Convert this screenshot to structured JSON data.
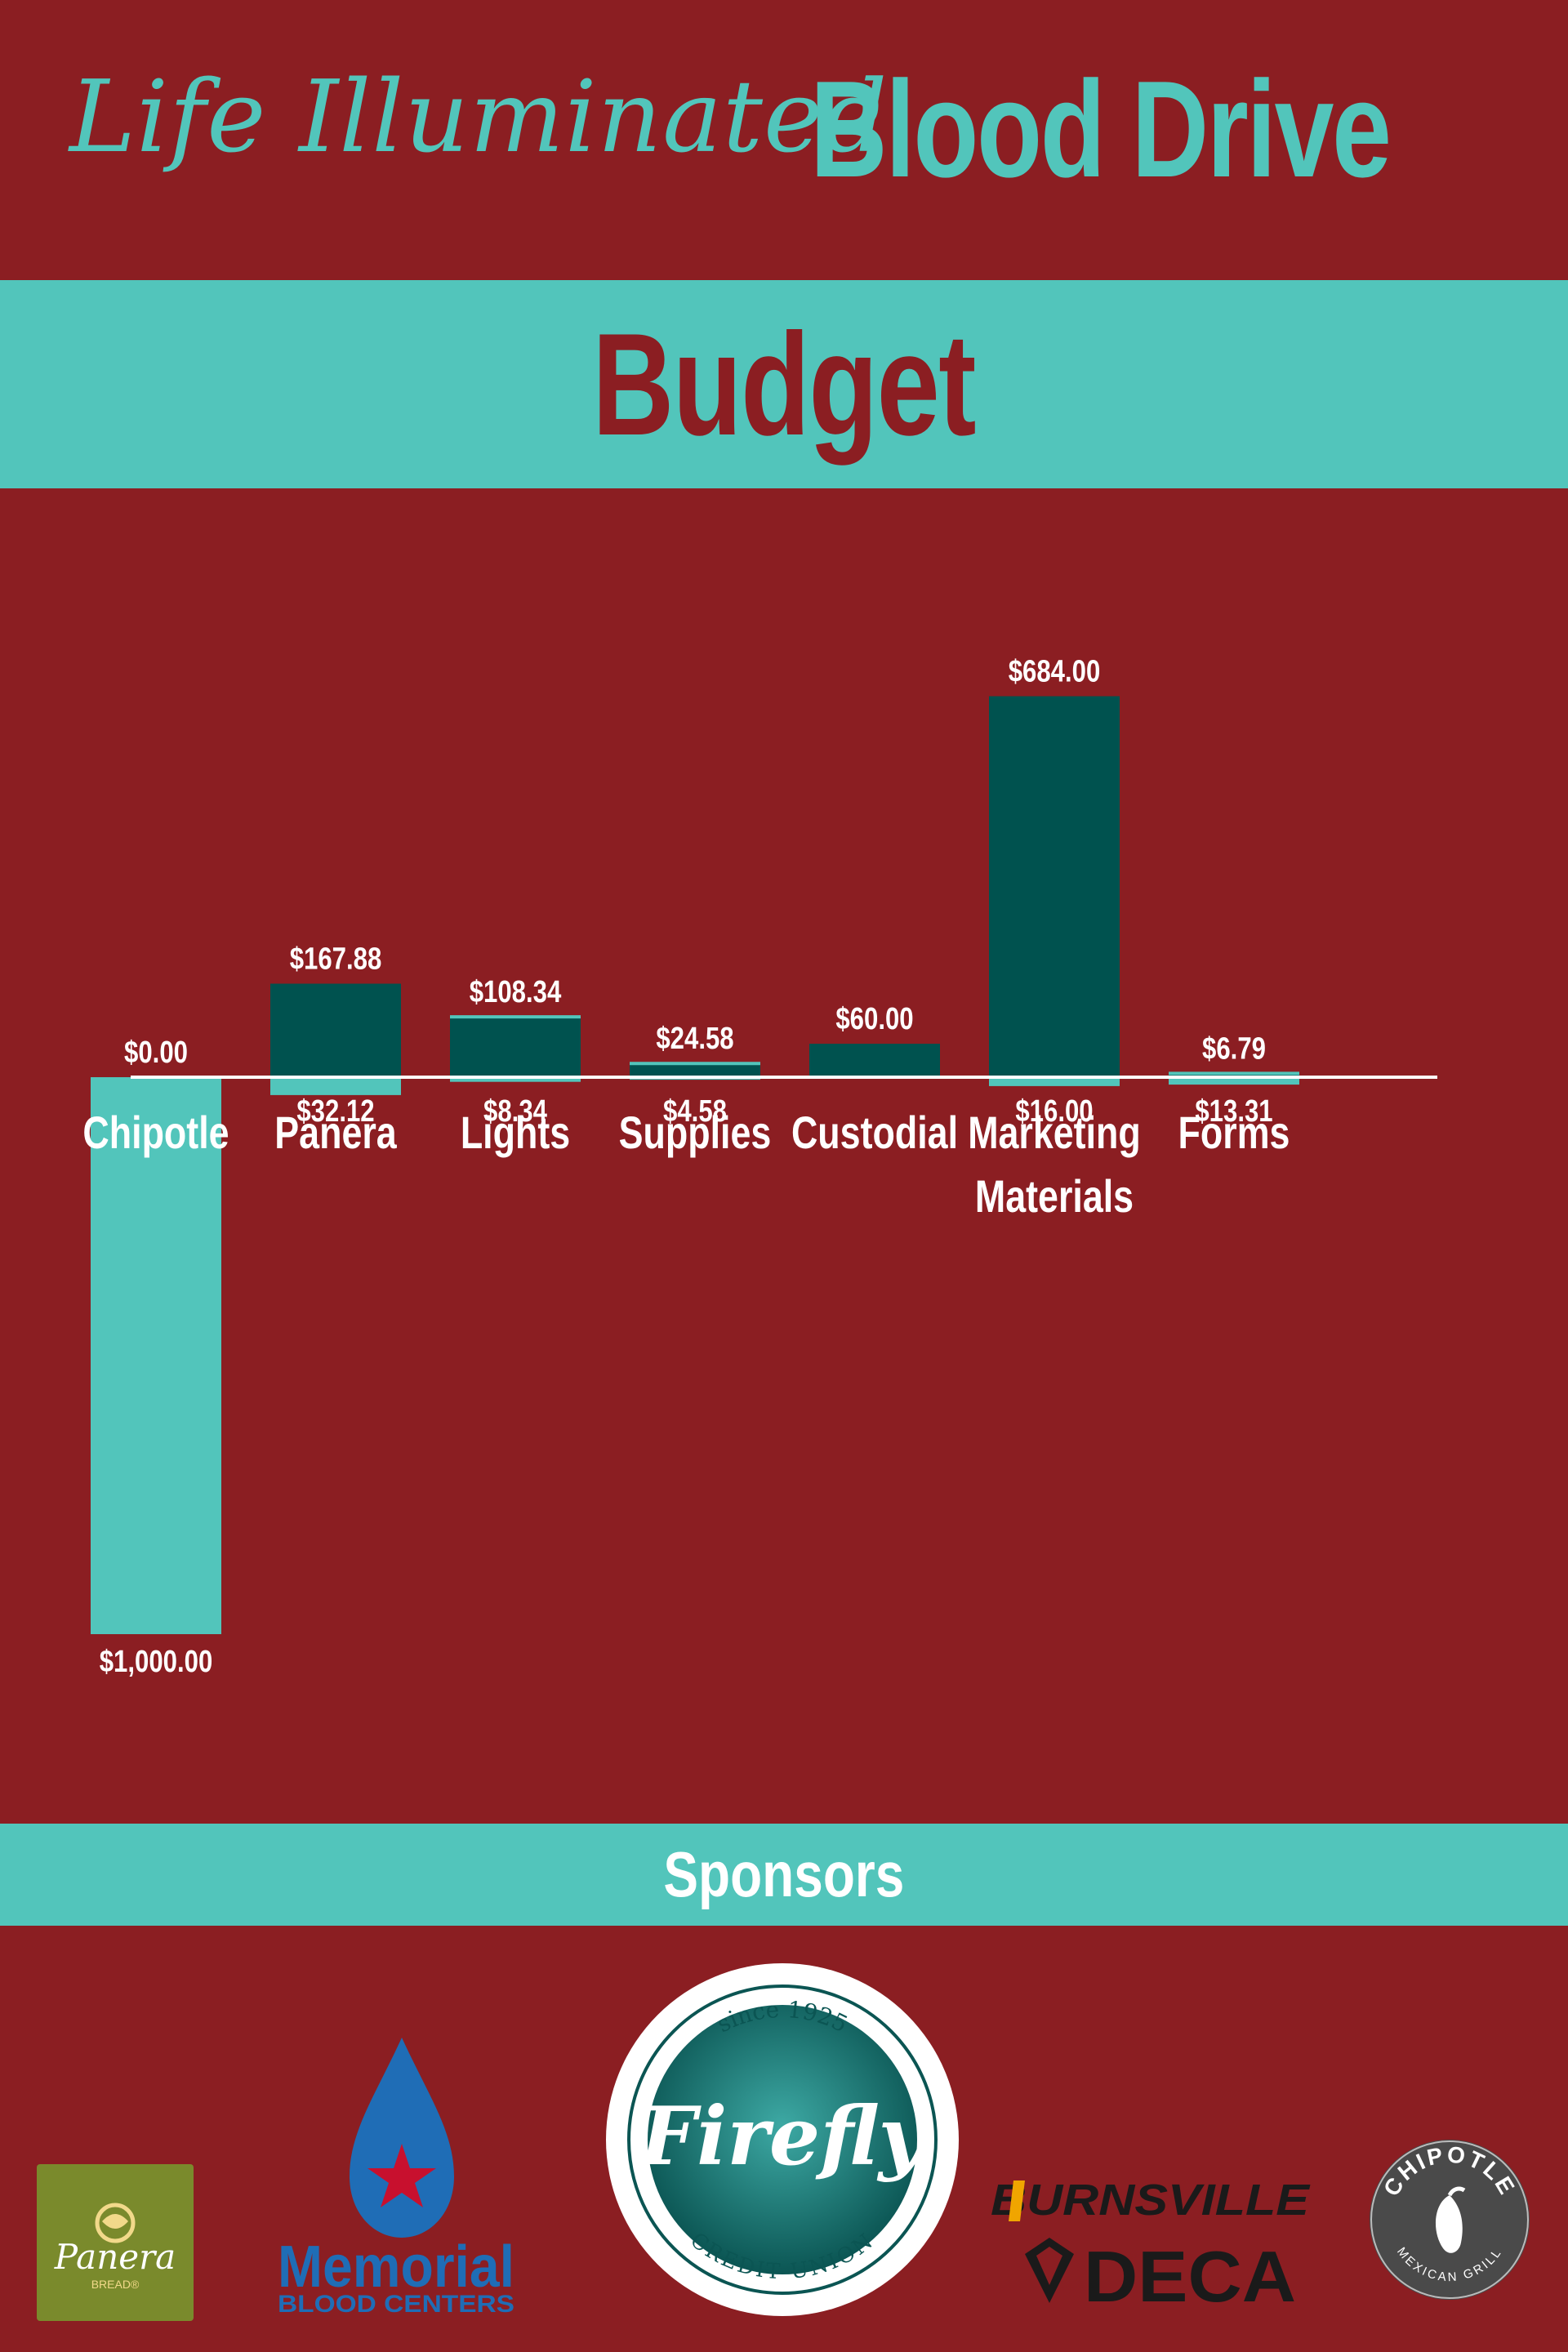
{
  "header": {
    "script_title": "Life Illuminated",
    "bold_title": "Blood Drive"
  },
  "budget_heading": "Budget",
  "sponsors_heading": "Sponsors",
  "chart_data": {
    "type": "bar",
    "categories": [
      "Chipotle",
      "Panera",
      "Lights",
      "Supplies",
      "Custodial",
      "Marketing\nMaterials",
      "Forms"
    ],
    "series": [
      {
        "values": [
          0,
          167.88,
          108.34,
          24.58,
          60,
          684,
          6.79
        ],
        "labels": [
          "$0.00",
          "$167.88",
          "$108.34",
          "$24.58",
          "$60.00",
          "$684.00",
          "$6.79"
        ],
        "color": "#00524f"
      },
      {
        "values": [
          1000,
          32.12,
          8.34,
          4.58,
          null,
          16,
          13.31
        ],
        "labels": [
          "$1,000.00",
          "$32.12",
          "$8.34",
          "$4.58",
          "",
          "$16.00",
          "$13.31"
        ],
        "color": "#52c5bb"
      }
    ],
    "colors": {
      "background": "#8b1e22",
      "axis": "#ffffff",
      "label": "#ffffff"
    }
  },
  "sponsors": {
    "panera": {
      "name": "Panera",
      "sub": "BREAD®"
    },
    "memorial": {
      "name": "Memorial",
      "sub": "BLOOD CENTERS"
    },
    "firefly": {
      "top": "since 1925",
      "name": "Firefly",
      "bottom": "CREDIT UNION"
    },
    "burnsville": {
      "name": "BURNSVILLE",
      "sub": "DECA"
    },
    "chipotle": {
      "top": "CHIPOTLE",
      "bottom": "MEXICAN GRILL"
    }
  },
  "colors": {
    "brand_teal": "#52c5bb",
    "dark_teal": "#00524f",
    "maroon": "#8b1e22"
  }
}
